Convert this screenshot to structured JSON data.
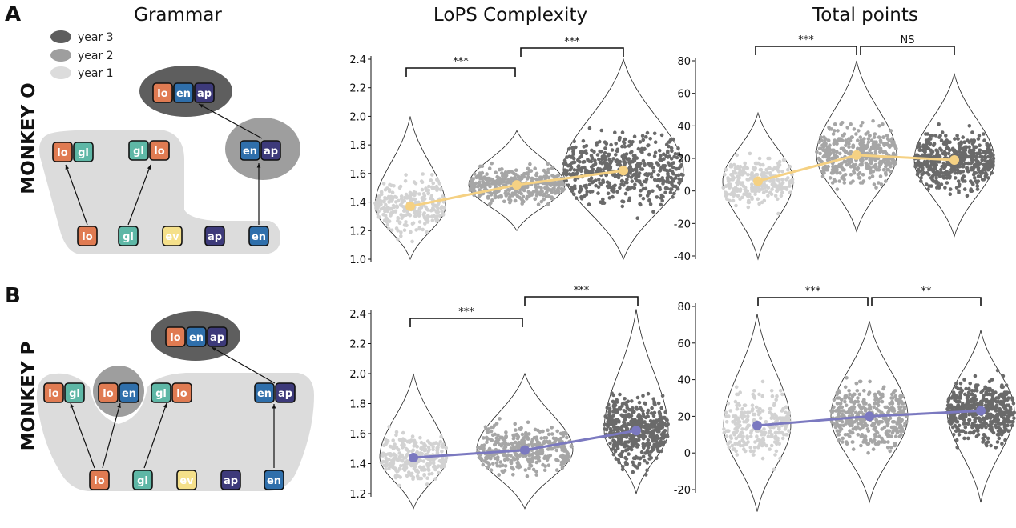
{
  "panels": {
    "a": "A",
    "b": "B"
  },
  "headers": {
    "grammar": "Grammar",
    "lops": "LoPS Complexity",
    "points": "Total points"
  },
  "rows": {
    "o": "MONKEY O",
    "p": "MONKEY P"
  },
  "legend": [
    {
      "label": "year 3",
      "color": "#5e5e5e"
    },
    {
      "label": "year 2",
      "color": "#9e9e9e"
    },
    {
      "label": "year 1",
      "color": "#dcdcdc"
    }
  ],
  "tokens": {
    "lo": "lo",
    "gl": "gl",
    "ev": "ev",
    "ap": "ap",
    "en": "en"
  },
  "colors": {
    "lo": "#e07b52",
    "gl": "#5eb7a6",
    "ev": "#f5e08a",
    "ap": "#3d3a7a",
    "en": "#2f6fab",
    "year1": "#dcdcdc",
    "year2": "#9e9e9e",
    "year3": "#5e5e5e",
    "mean_o": "#f5d183",
    "mean_p": "#7b79c0"
  },
  "chart_data": [
    {
      "type": "scatter",
      "panel": "MONKEY O",
      "title": "LoPS Complexity",
      "ylim": [
        1.0,
        2.4
      ],
      "yticks": [
        1.0,
        1.2,
        1.4,
        1.6,
        1.8,
        2.0,
        2.2,
        2.4
      ],
      "series": [
        {
          "name": "year 1",
          "mean": 1.37,
          "min": 1.0,
          "max": 2.0
        },
        {
          "name": "year 2",
          "mean": 1.52,
          "min": 1.2,
          "max": 1.9
        },
        {
          "name": "year 3",
          "mean": 1.62,
          "min": 1.0,
          "max": 2.4
        }
      ],
      "significance": [
        "***",
        "***"
      ]
    },
    {
      "type": "scatter",
      "panel": "MONKEY O",
      "title": "Total points",
      "ylim": [
        -40,
        80
      ],
      "yticks": [
        -40,
        -20,
        0,
        20,
        40,
        60,
        80
      ],
      "series": [
        {
          "name": "year 1",
          "mean": 6,
          "min": -42,
          "max": 48
        },
        {
          "name": "year 2",
          "mean": 22,
          "min": -25,
          "max": 80
        },
        {
          "name": "year 3",
          "mean": 19,
          "min": -28,
          "max": 72
        }
      ],
      "significance": [
        "***",
        "NS"
      ]
    },
    {
      "type": "scatter",
      "panel": "MONKEY P",
      "title": "LoPS Complexity",
      "ylim": [
        1.2,
        2.4
      ],
      "yticks": [
        1.2,
        1.4,
        1.6,
        1.8,
        2.0,
        2.2,
        2.4
      ],
      "series": [
        {
          "name": "year 1",
          "mean": 1.44,
          "min": 1.1,
          "max": 2.0
        },
        {
          "name": "year 2",
          "mean": 1.49,
          "min": 1.1,
          "max": 2.0
        },
        {
          "name": "year 3",
          "mean": 1.62,
          "min": 1.2,
          "max": 2.43
        }
      ],
      "significance": [
        "***",
        "***"
      ]
    },
    {
      "type": "scatter",
      "panel": "MONKEY P",
      "title": "Total points",
      "ylim": [
        -20,
        80
      ],
      "yticks": [
        -20,
        0,
        20,
        40,
        60,
        80
      ],
      "series": [
        {
          "name": "year 1",
          "mean": 15,
          "min": -32,
          "max": 76
        },
        {
          "name": "year 2",
          "mean": 20,
          "min": -27,
          "max": 72
        },
        {
          "name": "year 3",
          "mean": 23,
          "min": -27,
          "max": 67
        }
      ],
      "significance": [
        "***",
        "**"
      ]
    }
  ]
}
